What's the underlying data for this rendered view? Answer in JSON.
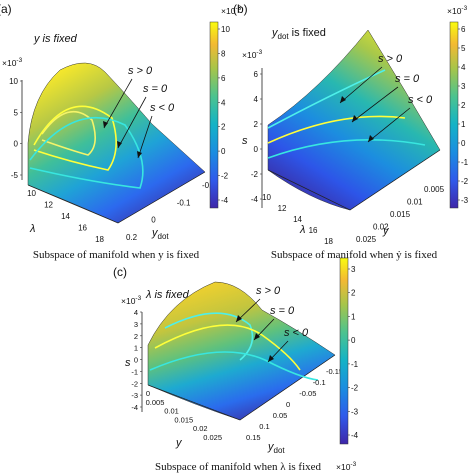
{
  "panels": [
    {
      "id": "a",
      "panel_label": "(a)",
      "fixed_label": "y is fixed",
      "caption": "Subspace of manifold when y is fixed",
      "z_exponent": "×10",
      "z_exponent_power": "-3",
      "z_ticks": [
        "10",
        "5",
        "0",
        "-5"
      ],
      "z_axis_label": "",
      "x_axis_label": "λ",
      "x_ticks": [
        "10",
        "12",
        "14",
        "16",
        "18"
      ],
      "y_axis_label": "y",
      "y_axis_sub": "dot",
      "y_ticks": [
        "0.2",
        "0",
        "-0.1",
        "-0.2"
      ],
      "colorbar_exponent": "×10",
      "colorbar_exponent_power": "-3",
      "colorbar_ticks": [
        "10",
        "8",
        "6",
        "4",
        "2",
        "0",
        "-2",
        "-4"
      ],
      "annotations": [
        "s > 0",
        "s = 0",
        "s < 0"
      ]
    },
    {
      "id": "b",
      "panel_label": "(b)",
      "fixed_label": "y",
      "fixed_label_sub": "dot",
      "fixed_label_suffix": " is fixed",
      "caption": "Subspace of manifold when ẏ is fixed",
      "z_exponent": "×10",
      "z_exponent_power": "-3",
      "z_ticks": [
        "6",
        "4",
        "2",
        "0",
        "-2",
        "-4"
      ],
      "z_axis_label": "s",
      "x_axis_label": "λ",
      "x_ticks": [
        "10",
        "12",
        "14",
        "16",
        "18"
      ],
      "y_axis_label": "y",
      "y_ticks": [
        "0.025",
        "0.02",
        "0.015",
        "0.01",
        "0.005"
      ],
      "colorbar_exponent": "×10",
      "colorbar_exponent_power": "-3",
      "colorbar_ticks": [
        "6",
        "5",
        "4",
        "3",
        "2",
        "1",
        "0",
        "-1",
        "-2",
        "-3"
      ],
      "annotations": [
        "s > 0",
        "s = 0",
        "s < 0"
      ]
    },
    {
      "id": "c",
      "panel_label": "(c)",
      "fixed_label": "λ is fixed",
      "caption": "Subspace of manifold when λ is fixed",
      "z_exponent": "×10",
      "z_exponent_power": "-3",
      "z_ticks": [
        "4",
        "3",
        "2",
        "1",
        "0",
        "-1",
        "-2",
        "-3",
        "-4"
      ],
      "z_axis_label": "s",
      "x_axis_label": "y",
      "x_ticks": [
        "0",
        "0.005",
        "0.01",
        "0.015",
        "0.02",
        "0.025"
      ],
      "y_axis_label": "y",
      "y_axis_sub": "dot",
      "y_ticks": [
        "0.15",
        "0.1",
        "0.05",
        "0",
        "-0.05",
        "-0.1",
        "-0.15"
      ],
      "colorbar_exponent": "×10",
      "colorbar_exponent_power": "-3",
      "colorbar_ticks": [
        "3",
        "2",
        "1",
        "0",
        "-1",
        "-2",
        "-3",
        "-4"
      ],
      "annotations": [
        "s > 0",
        "s = 0",
        "s < 0"
      ]
    }
  ],
  "chart_data": [
    {
      "type": "surface",
      "panel": "a",
      "x": {
        "label": "λ",
        "range": [
          10,
          18
        ]
      },
      "y": {
        "label": "ẏ",
        "range": [
          -0.2,
          0.2
        ]
      },
      "z": {
        "label": "s",
        "range": [
          -0.005,
          0.01
        ],
        "scale": "×10^-3"
      },
      "colormap": "parula",
      "color_range": [
        -0.004,
        0.01
      ],
      "contours": [
        {
          "label": "s > 0",
          "level": 0.002
        },
        {
          "label": "s = 0",
          "level": 0
        },
        {
          "label": "s < 0",
          "level": -0.002
        }
      ]
    },
    {
      "type": "surface",
      "panel": "b",
      "x": {
        "label": "λ",
        "range": [
          10,
          18
        ]
      },
      "y": {
        "label": "y",
        "range": [
          0.005,
          0.025
        ]
      },
      "z": {
        "label": "s",
        "range": [
          -0.004,
          0.006
        ],
        "scale": "×10^-3"
      },
      "colormap": "parula",
      "color_range": [
        -0.003,
        0.006
      ],
      "contours": [
        {
          "label": "s > 0",
          "level": 0.001
        },
        {
          "label": "s = 0",
          "level": 0
        },
        {
          "label": "s < 0",
          "level": -0.001
        }
      ]
    },
    {
      "type": "surface",
      "panel": "c",
      "x": {
        "label": "y",
        "range": [
          0,
          0.025
        ]
      },
      "y": {
        "label": "ẏ",
        "range": [
          -0.15,
          0.15
        ]
      },
      "z": {
        "label": "s",
        "range": [
          -0.004,
          0.004
        ],
        "scale": "×10^-3"
      },
      "colormap": "parula",
      "color_range": [
        -0.004,
        0.0035
      ],
      "contours": [
        {
          "label": "s > 0",
          "level": 0.001
        },
        {
          "label": "s = 0",
          "level": 0
        },
        {
          "label": "s < 0",
          "level": -0.001
        }
      ]
    }
  ]
}
